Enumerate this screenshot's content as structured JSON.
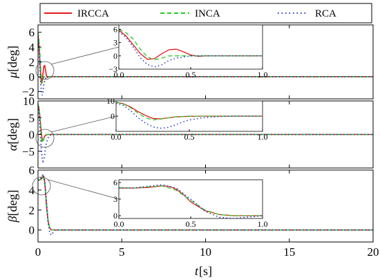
{
  "series_colors": {
    "IRCCA": "#e41a1c",
    "INCA": "#22cc22",
    "RCA": "#2233cc"
  },
  "legend": [
    {
      "name": "IRCCA",
      "color": "#e41a1c",
      "style": "solid"
    },
    {
      "name": "INCA",
      "color": "#22cc22",
      "style": "dashed"
    },
    {
      "name": "RCA",
      "color": "#2233cc",
      "style": "dotted"
    }
  ],
  "chart_data": [
    {
      "type": "line",
      "ylabel_symbol": "μ",
      "ylabel_unit": "[deg]",
      "xlim": [
        0,
        20
      ],
      "ylim": [
        -3,
        7
      ],
      "yticks": [
        6,
        4,
        2,
        0,
        -2
      ],
      "ytick_labels": [
        "6",
        "4",
        "2",
        "0",
        "−2"
      ],
      "series": [
        {
          "name": "IRCCA",
          "x": [
            0,
            0.05,
            0.1,
            0.15,
            0.2,
            0.25,
            0.3,
            0.35,
            0.4,
            0.45,
            0.5,
            0.55,
            0.6,
            0.7,
            0.8,
            1.0,
            20
          ],
          "y": [
            5.8,
            4.5,
            2.5,
            0.5,
            -0.8,
            -0.6,
            0.5,
            1.4,
            1.5,
            0.9,
            0.2,
            -0.1,
            0,
            0,
            0,
            0,
            0
          ]
        },
        {
          "name": "INCA",
          "x": [
            0,
            0.05,
            0.1,
            0.15,
            0.2,
            0.25,
            0.3,
            0.35,
            0.4,
            0.5,
            0.6,
            1.0,
            20
          ],
          "y": [
            6.0,
            5.2,
            3.8,
            1.5,
            -0.3,
            -0.9,
            -0.5,
            0,
            0,
            0,
            0,
            0,
            0
          ]
        },
        {
          "name": "RCA",
          "x": [
            0,
            0.05,
            0.1,
            0.15,
            0.2,
            0.25,
            0.3,
            0.35,
            0.4,
            0.5,
            0.6,
            0.8,
            1.0,
            20
          ],
          "y": [
            5.5,
            4.2,
            2.0,
            -0.5,
            -2.0,
            -2.5,
            -2.0,
            -1.0,
            -0.5,
            0,
            0,
            0,
            0,
            0
          ]
        }
      ],
      "inset": {
        "xlim": [
          0,
          1
        ],
        "ylim": [
          -3,
          7
        ],
        "xticks": [
          0,
          0.5,
          1.0
        ],
        "xtick_labels": [
          "0.0",
          "0.5",
          "1.0"
        ],
        "yticks": [
          6,
          3,
          0,
          -3
        ],
        "ytick_labels": [
          "6",
          "3",
          "0",
          "−3"
        ]
      }
    },
    {
      "type": "line",
      "ylabel_symbol": "α",
      "ylabel_unit": "[deg]",
      "xlim": [
        0,
        20
      ],
      "ylim": [
        -10,
        10
      ],
      "yticks": [
        10,
        5,
        0,
        -5
      ],
      "ytick_labels": [
        "10",
        "5",
        "0",
        "−5"
      ],
      "series": [
        {
          "name": "IRCCA",
          "x": [
            0,
            0.05,
            0.1,
            0.15,
            0.2,
            0.25,
            0.3,
            0.35,
            0.4,
            0.5,
            0.6,
            0.8,
            1.0,
            20
          ],
          "y": [
            9.0,
            8.2,
            6.0,
            3.0,
            0.5,
            -1.5,
            -1.8,
            -1.2,
            -0.5,
            -0.1,
            0,
            0,
            0,
            0
          ]
        },
        {
          "name": "INCA",
          "x": [
            0,
            0.05,
            0.1,
            0.15,
            0.2,
            0.25,
            0.3,
            0.4,
            0.5,
            1.0,
            20
          ],
          "y": [
            9.2,
            8.0,
            5.5,
            2.0,
            -1.0,
            -2.5,
            -2.0,
            -0.5,
            0,
            0,
            0
          ]
        },
        {
          "name": "RCA",
          "x": [
            0,
            0.05,
            0.1,
            0.15,
            0.2,
            0.25,
            0.3,
            0.35,
            0.4,
            0.45,
            0.5,
            0.6,
            0.7,
            0.8,
            1.0,
            20
          ],
          "y": [
            8.5,
            7.0,
            3.5,
            -1.0,
            -4.5,
            -7.0,
            -8.0,
            -7.5,
            -6.0,
            -4.0,
            -2.5,
            -1.0,
            -0.3,
            0,
            0,
            0
          ]
        }
      ],
      "inset": {
        "xlim": [
          0,
          1
        ],
        "ylim": [
          -10,
          10
        ],
        "xticks": [
          0,
          0.5,
          1.0
        ],
        "xtick_labels": [
          "0.0",
          "0.5",
          "1.0"
        ],
        "yticks": [
          10,
          0
        ],
        "ytick_labels": [
          "10",
          "0"
        ]
      }
    },
    {
      "type": "line",
      "ylabel_symbol": "β",
      "ylabel_unit": "[deg]",
      "xlim": [
        0,
        20
      ],
      "ylim": [
        -1.2,
        6
      ],
      "yticks": [
        6,
        4,
        2,
        0
      ],
      "ytick_labels": [
        "6",
        "4",
        "2",
        "0"
      ],
      "series": [
        {
          "name": "IRCCA",
          "x": [
            0,
            0.1,
            0.2,
            0.3,
            0.35,
            0.4,
            0.45,
            0.5,
            0.6,
            0.7,
            0.8,
            1.0,
            20
          ],
          "y": [
            5.0,
            5.0,
            5.1,
            5.4,
            5.3,
            4.8,
            3.8,
            2.5,
            0.9,
            0.2,
            0,
            0,
            0
          ]
        },
        {
          "name": "INCA",
          "x": [
            0,
            0.1,
            0.2,
            0.3,
            0.4,
            0.5,
            0.6,
            0.7,
            0.8,
            1.0,
            20
          ],
          "y": [
            5.1,
            5.0,
            5.2,
            5.4,
            4.6,
            2.8,
            1.0,
            0.2,
            0,
            0,
            0
          ]
        },
        {
          "name": "RCA",
          "x": [
            0,
            0.1,
            0.2,
            0.3,
            0.4,
            0.5,
            0.6,
            0.7,
            0.8,
            1.0,
            20
          ],
          "y": [
            5.0,
            5.0,
            5.3,
            5.6,
            5.0,
            3.0,
            0.8,
            -0.3,
            -0.5,
            0,
            0
          ]
        }
      ],
      "inset": {
        "xlim": [
          0,
          1
        ],
        "ylim": [
          -0.5,
          6.5
        ],
        "xticks": [
          0,
          0.5,
          1.0
        ],
        "xtick_labels": [
          "0.0",
          "0.5",
          "1.0"
        ],
        "yticks": [
          6,
          3,
          0
        ],
        "ytick_labels": [
          "6",
          "3",
          "0"
        ]
      }
    }
  ],
  "shared_x": {
    "xlabel_symbol": "t",
    "xlabel_unit": "[s]",
    "xticks": [
      0,
      5,
      10,
      15,
      20
    ],
    "xtick_labels": [
      "0",
      "5",
      "10",
      "15",
      "20"
    ]
  }
}
